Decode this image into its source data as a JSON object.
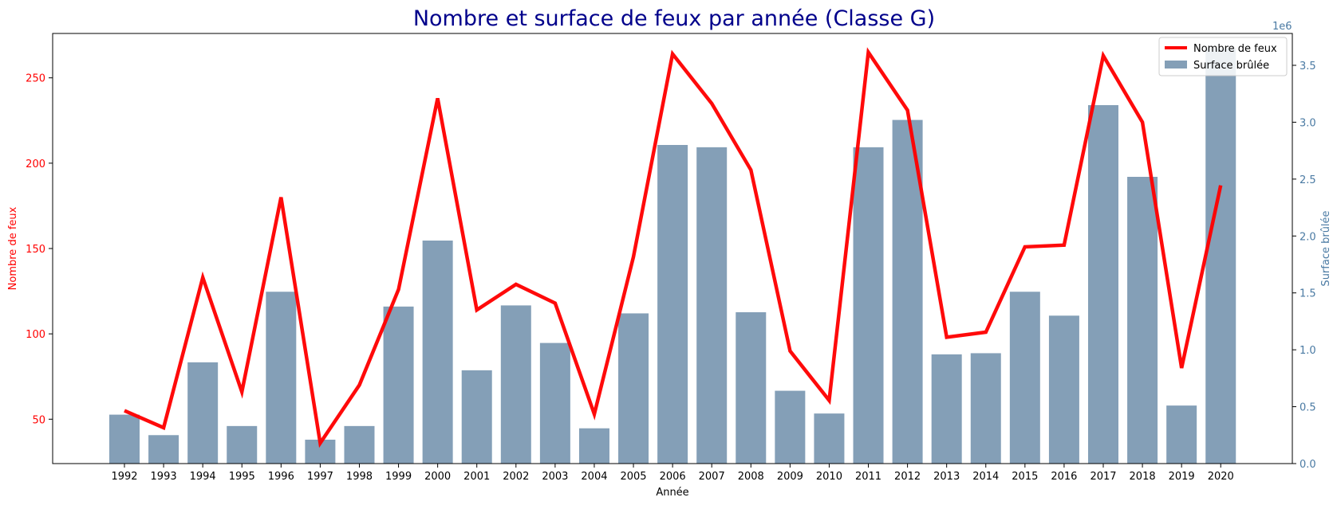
{
  "chart_data": {
    "type": "bar+line",
    "title": "Nombre et surface de feux par année (Classe G)",
    "xlabel": "Année",
    "ylabel_left": "Nombre de feux",
    "ylabel_right": "Surface brûlée",
    "right_axis_offset_label": "1e6",
    "categories": [
      "1992",
      "1993",
      "1994",
      "1995",
      "1996",
      "1997",
      "1998",
      "1999",
      "2000",
      "2001",
      "2002",
      "2003",
      "2004",
      "2005",
      "2006",
      "2007",
      "2008",
      "2009",
      "2010",
      "2011",
      "2012",
      "2013",
      "2014",
      "2015",
      "2016",
      "2017",
      "2018",
      "2019",
      "2020"
    ],
    "series": [
      {
        "name": "Nombre de feux",
        "type": "line",
        "axis": "left",
        "color": "#ff0000",
        "values": [
          55,
          45,
          133,
          66,
          180,
          36,
          70,
          126,
          238,
          114,
          129,
          118,
          53,
          145,
          264,
          235,
          196,
          90,
          61,
          265,
          231,
          98,
          101,
          151,
          152,
          263,
          224,
          80,
          187
        ]
      },
      {
        "name": "Surface brûlée",
        "type": "bar",
        "axis": "right",
        "color": "#7392ad",
        "values": [
          430000,
          250000,
          890000,
          330000,
          1510000,
          210000,
          330000,
          1380000,
          1960000,
          820000,
          1390000,
          1060000,
          310000,
          1320000,
          2800000,
          2780000,
          1330000,
          640000,
          440000,
          2780000,
          3020000,
          960000,
          970000,
          1510000,
          1300000,
          3150000,
          2520000,
          510000,
          3650000
        ]
      }
    ],
    "ylim_left": [
      24,
      276
    ],
    "yticks_left": [
      50,
      100,
      150,
      200,
      250
    ],
    "ylim_right": [
      0,
      3780000
    ],
    "yticks_right": [
      0,
      0.5,
      1.0,
      1.5,
      2.0,
      2.5,
      3.0,
      3.5
    ],
    "yticks_right_labels": [
      "0.0",
      "0.5",
      "1.0",
      "1.5",
      "2.0",
      "2.5",
      "3.0",
      "3.5"
    ],
    "left_axis_color": "#ff0000",
    "right_axis_color": "#4a7aa3",
    "title_color": "#00008b",
    "legend_position": "top-right",
    "grid": false
  }
}
